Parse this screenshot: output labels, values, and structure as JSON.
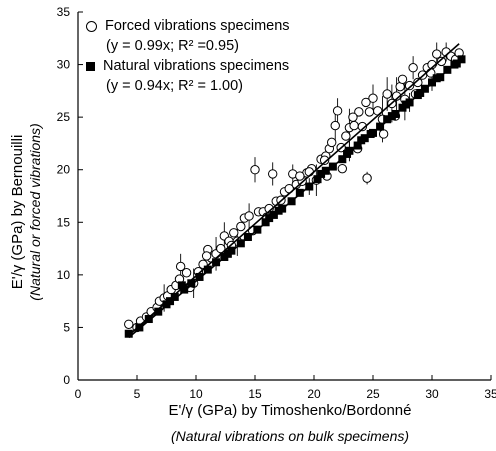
{
  "chart_data": {
    "type": "scatter",
    "x_ticks": [
      "0",
      "5",
      "10",
      "15",
      "20",
      "25",
      "30",
      "35"
    ],
    "y_ticks": [
      "0",
      "5",
      "10",
      "15",
      "20",
      "25",
      "30",
      "35"
    ],
    "xlim": [
      0,
      35
    ],
    "ylim": [
      0,
      35
    ],
    "grid": false,
    "legend_position": "top-left",
    "xlabel": "E'/γ (GPa) by Timoshenko/Bordonné",
    "xlabel_sub": "(Natural vibrations on bulk specimens)",
    "ylabel": "E'/γ (GPa) by Bernouilli",
    "ylabel_sub": "(Natural or forced vibrations)",
    "series": [
      {
        "name": "Forced vibrations specimens",
        "equation": "(y = 0.99x; R² =0.95)",
        "marker": "open-circle",
        "fit_slope": 0.99,
        "fit_x_range": [
          4.3,
          32.3
        ],
        "points": [
          [
            4.3,
            5.3
          ],
          [
            5.0,
            5.0
          ],
          [
            5.3,
            5.6
          ],
          [
            5.8,
            6.0
          ],
          [
            6.2,
            6.5
          ],
          [
            6.7,
            6.9
          ],
          [
            6.9,
            7.5
          ],
          [
            7.3,
            7.8
          ],
          [
            7.6,
            8.0
          ],
          [
            7.9,
            8.6
          ],
          [
            8.3,
            9.0
          ],
          [
            8.6,
            9.6
          ],
          [
            8.7,
            10.8
          ],
          [
            9.2,
            10.2
          ],
          [
            9.5,
            8.8
          ],
          [
            9.8,
            9.2
          ],
          [
            10.2,
            10.3
          ],
          [
            10.6,
            11.0
          ],
          [
            11.0,
            12.4
          ],
          [
            11.3,
            11.6
          ],
          [
            11.7,
            12.0
          ],
          [
            12.1,
            12.5
          ],
          [
            12.4,
            13.7
          ],
          [
            12.8,
            13.2
          ],
          [
            13.2,
            14.0
          ],
          [
            13.5,
            13.2
          ],
          [
            13.8,
            14.6
          ],
          [
            14.1,
            15.4
          ],
          [
            14.5,
            15.6
          ],
          [
            14.8,
            14.2
          ],
          [
            15.0,
            20.0
          ],
          [
            15.3,
            16.0
          ],
          [
            15.7,
            16.0
          ],
          [
            16.2,
            16.3
          ],
          [
            16.5,
            19.6
          ],
          [
            16.8,
            17.0
          ],
          [
            17.2,
            17.1
          ],
          [
            17.5,
            17.9
          ],
          [
            17.9,
            18.2
          ],
          [
            18.2,
            19.6
          ],
          [
            18.5,
            18.6
          ],
          [
            19.0,
            18.9
          ],
          [
            19.4,
            19.7
          ],
          [
            19.8,
            20.1
          ],
          [
            20.2,
            19.0
          ],
          [
            20.6,
            21.0
          ],
          [
            21.0,
            21.3
          ],
          [
            21.3,
            22.0
          ],
          [
            21.5,
            22.6
          ],
          [
            21.8,
            24.2
          ],
          [
            22.0,
            25.6
          ],
          [
            22.3,
            22.1
          ],
          [
            22.7,
            23.2
          ],
          [
            23.0,
            24.0
          ],
          [
            23.4,
            24.2
          ],
          [
            23.8,
            25.5
          ],
          [
            24.1,
            24.1
          ],
          [
            24.5,
            19.2
          ],
          [
            24.7,
            25.5
          ],
          [
            25.0,
            26.8
          ],
          [
            25.4,
            25.6
          ],
          [
            25.8,
            24.8
          ],
          [
            26.2,
            27.2
          ],
          [
            26.6,
            26.3
          ],
          [
            27.0,
            27.0
          ],
          [
            27.3,
            27.9
          ],
          [
            27.7,
            26.7
          ],
          [
            28.1,
            28.0
          ],
          [
            28.4,
            29.7
          ],
          [
            28.8,
            28.3
          ],
          [
            29.2,
            29.0
          ],
          [
            29.6,
            29.7
          ],
          [
            30.0,
            30.0
          ],
          [
            30.4,
            31.0
          ],
          [
            30.8,
            30.3
          ],
          [
            31.2,
            31.2
          ],
          [
            31.6,
            30.8
          ],
          [
            32.0,
            30.5
          ],
          [
            32.3,
            31.1
          ],
          [
            22.4,
            20.1
          ],
          [
            23.7,
            22.0
          ],
          [
            25.9,
            23.4
          ],
          [
            26.9,
            25.1
          ],
          [
            28.6,
            27.2
          ],
          [
            21.1,
            19.4
          ],
          [
            19.6,
            19.8
          ],
          [
            20.9,
            20.9
          ],
          [
            23.3,
            25.0
          ],
          [
            24.4,
            26.4
          ],
          [
            27.5,
            28.6
          ],
          [
            29.9,
            29.2
          ],
          [
            18.8,
            19.4
          ],
          [
            16.0,
            15.5
          ],
          [
            13.0,
            12.8
          ],
          [
            10.9,
            11.8
          ]
        ],
        "error_bars": [
          [
            7.3,
            7.8,
            1.3
          ],
          [
            9.8,
            9.2,
            1.4
          ],
          [
            11.7,
            12.0,
            1.6
          ],
          [
            15.0,
            20.0,
            1.2
          ],
          [
            16.5,
            19.6,
            1.1
          ],
          [
            18.2,
            19.6,
            0.9
          ],
          [
            21.8,
            24.2,
            1.4
          ],
          [
            22.0,
            25.6,
            1.2
          ],
          [
            23.0,
            24.0,
            1.8
          ],
          [
            24.5,
            19.2,
            0.6
          ],
          [
            25.0,
            26.8,
            1.3
          ],
          [
            25.8,
            24.8,
            2.2
          ],
          [
            26.2,
            27.2,
            1.6
          ],
          [
            27.0,
            27.0,
            1.8
          ],
          [
            28.4,
            29.7,
            1.1
          ],
          [
            30.4,
            31.0,
            1.1
          ],
          [
            31.2,
            31.2,
            0.9
          ],
          [
            26.6,
            26.3,
            1.8
          ],
          [
            27.7,
            26.7,
            2.0
          ],
          [
            20.2,
            19.0,
            1.5
          ],
          [
            14.5,
            15.6,
            1.2
          ],
          [
            12.4,
            13.7,
            1.3
          ],
          [
            8.7,
            10.8,
            1.2
          ],
          [
            13.5,
            13.2,
            1.4
          ]
        ]
      },
      {
        "name": "Natural vibrations specimens",
        "equation": "(y = 0.94x; R² = 1.00)",
        "marker": "filled-square",
        "fit_slope": 0.94,
        "fit_x_range": [
          4.3,
          32.5
        ],
        "points": [
          [
            4.3,
            4.4
          ],
          [
            5.2,
            5.0
          ],
          [
            6.0,
            5.8
          ],
          [
            6.8,
            6.5
          ],
          [
            7.5,
            7.2
          ],
          [
            8.2,
            7.9
          ],
          [
            9.0,
            8.6
          ],
          [
            9.6,
            9.2
          ],
          [
            10.3,
            9.8
          ],
          [
            11.0,
            10.5
          ],
          [
            11.7,
            11.2
          ],
          [
            12.4,
            11.7
          ],
          [
            13.0,
            12.3
          ],
          [
            13.8,
            13.0
          ],
          [
            14.4,
            13.6
          ],
          [
            15.2,
            14.3
          ],
          [
            15.9,
            15.0
          ],
          [
            16.6,
            15.7
          ],
          [
            17.3,
            16.3
          ],
          [
            18.1,
            17.0
          ],
          [
            18.8,
            17.8
          ],
          [
            19.6,
            18.4
          ],
          [
            20.3,
            19.1
          ],
          [
            21.0,
            19.9
          ],
          [
            21.6,
            20.3
          ],
          [
            22.4,
            21.0
          ],
          [
            23.0,
            21.8
          ],
          [
            23.7,
            22.3
          ],
          [
            24.3,
            23.0
          ],
          [
            25.0,
            23.5
          ],
          [
            25.6,
            24.1
          ],
          [
            26.2,
            24.8
          ],
          [
            26.9,
            25.3
          ],
          [
            27.5,
            25.9
          ],
          [
            28.1,
            26.4
          ],
          [
            28.8,
            27.1
          ],
          [
            29.4,
            27.7
          ],
          [
            30.0,
            28.3
          ],
          [
            30.7,
            28.8
          ],
          [
            31.3,
            29.5
          ],
          [
            31.9,
            30.0
          ],
          [
            32.5,
            30.5
          ],
          [
            7.8,
            7.5
          ],
          [
            12.7,
            12.0
          ],
          [
            17.0,
            16.1
          ],
          [
            20.6,
            19.6
          ],
          [
            22.8,
            21.5
          ],
          [
            24.8,
            23.4
          ],
          [
            26.6,
            25.1
          ],
          [
            29.0,
            27.3
          ],
          [
            30.4,
            28.7
          ],
          [
            32.1,
            30.1
          ],
          [
            8.8,
            9.0
          ],
          [
            16.2,
            15.4
          ],
          [
            24.0,
            22.8
          ],
          [
            27.8,
            26.2
          ]
        ],
        "error_bars": [
          [
            19.6,
            18.4,
            0.8
          ],
          [
            23.0,
            21.8,
            1.0
          ],
          [
            25.6,
            24.1,
            1.0
          ],
          [
            28.1,
            26.4,
            0.9
          ],
          [
            30.0,
            28.3,
            0.8
          ]
        ]
      }
    ]
  }
}
